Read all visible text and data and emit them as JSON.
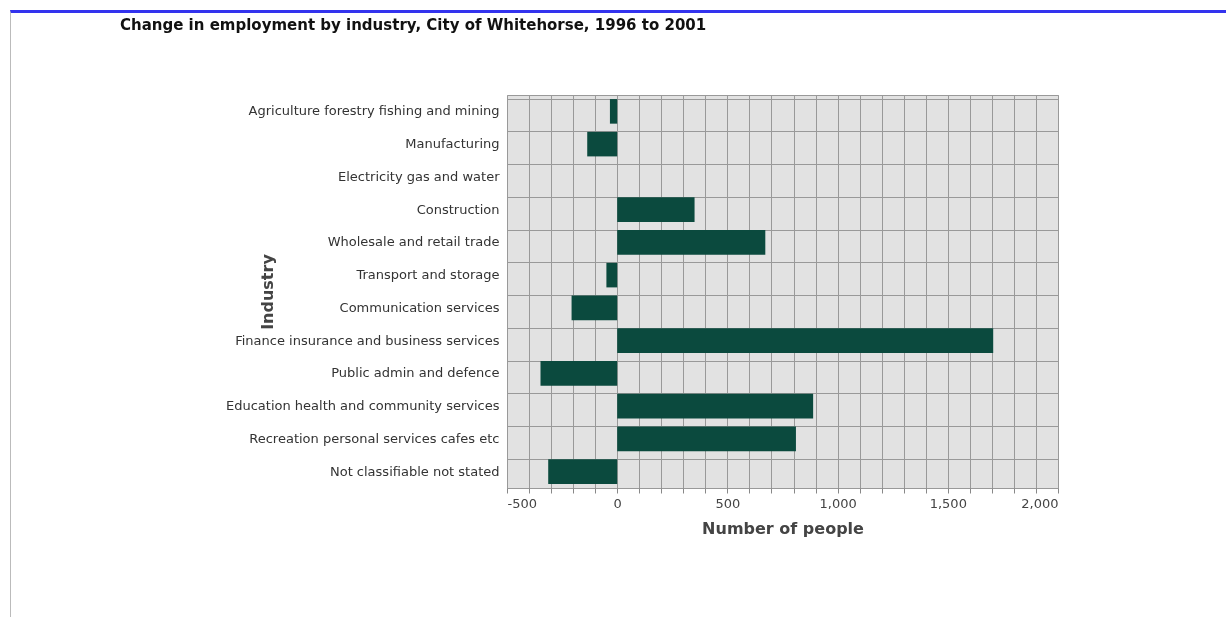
{
  "chart_data": {
    "type": "bar",
    "orientation": "horizontal",
    "title": "Change in employment by industry, City of Whitehorse, 1996 to 2001",
    "xlabel": "Number of people",
    "ylabel": "Industry",
    "categories": [
      "Agriculture forestry fishing and mining",
      "Manufacturing",
      "Electricity gas and water",
      "Construction",
      "Wholesale and retail trade",
      "Transport and storage",
      "Communication services",
      "Finance insurance and business services",
      "Public admin and defence",
      "Education health and community services",
      "Recreation personal services cafes etc",
      "Not classifiable not stated"
    ],
    "values": [
      -33,
      -136,
      0,
      351,
      672,
      -49,
      -207,
      1706,
      -348,
      889,
      811,
      -313
    ],
    "color": "#0b4a3e",
    "xlim": [
      -500,
      2000
    ],
    "xticks": [
      {
        "value": -500,
        "label": "-500"
      },
      {
        "value": -400,
        "label": null
      },
      {
        "value": -300,
        "label": null
      },
      {
        "value": -200,
        "label": null
      },
      {
        "value": -100,
        "label": null
      },
      0,
      {
        "value": 100,
        "label": null
      },
      {
        "value": 200,
        "label": null
      },
      {
        "value": 300,
        "label": null
      },
      {
        "value": 400,
        "label": null
      },
      500,
      {
        "value": 600,
        "label": null
      },
      {
        "value": 700,
        "label": null
      },
      {
        "value": 800,
        "label": null
      },
      {
        "value": 900,
        "label": null
      },
      {
        "value": 1000,
        "label": "1,000"
      },
      {
        "value": 1100,
        "label": null
      },
      {
        "value": 1200,
        "label": null
      },
      {
        "value": 1300,
        "label": null
      },
      {
        "value": 1400,
        "label": null
      },
      {
        "value": 1500,
        "label": "1,500"
      },
      {
        "value": 1600,
        "label": null
      },
      {
        "value": 1700,
        "label": null
      },
      {
        "value": 1800,
        "label": null
      },
      {
        "value": 1900,
        "label": null
      },
      {
        "value": 2000,
        "label": "2,000"
      }
    ],
    "grid": true
  }
}
